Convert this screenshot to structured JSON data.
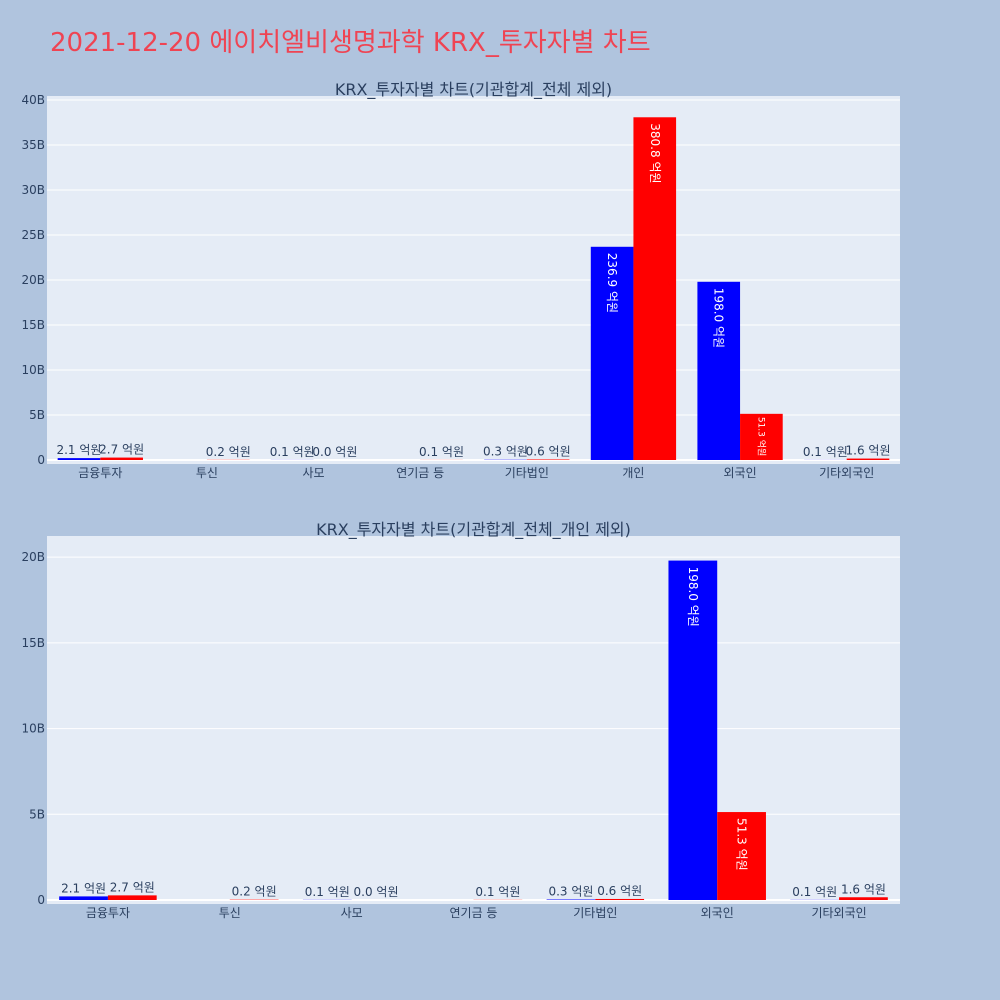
{
  "page_title": "2021-12-20 에이치엘비생명과학 KRX_투자자별 차트",
  "colors": {
    "buy": "#0000ff",
    "sell": "#ff0000",
    "plot_bg": "#e5ecf6",
    "page_bg": "#b0c4de",
    "title": "#ef4453"
  },
  "chart_data": [
    {
      "type": "bar",
      "title": "KRX_투자자별 차트(기관합계_전체 제외)",
      "categories": [
        "금융투자",
        "투신",
        "사모",
        "연기금 등",
        "기타법인",
        "개인",
        "외국인",
        "기타외국인"
      ],
      "series": [
        {
          "values": [
            210000000,
            0,
            10000000,
            0,
            30000000,
            23690000000,
            19800000000,
            10000000
          ],
          "labels": [
            "2.1 억원",
            "",
            "0.1 억원",
            "",
            "0.3 억원",
            "236.9 억원",
            "198.0 억원",
            "0.1 억원"
          ]
        },
        {
          "values": [
            270000000,
            20000000,
            0,
            10000000,
            60000000,
            38080000000,
            5130000000,
            160000000
          ],
          "labels": [
            "2.7 억원",
            "0.2 억원",
            "0.0 억원",
            "0.1 억원",
            "0.6 억원",
            "380.8 억원",
            "51.3 억원",
            "1.6 억원"
          ]
        }
      ],
      "ylim": [
        0,
        40000000000
      ],
      "yticks": [
        0,
        5000000000,
        10000000000,
        15000000000,
        20000000000,
        25000000000,
        30000000000,
        35000000000,
        40000000000
      ],
      "ytick_labels": [
        "0",
        "5B",
        "10B",
        "15B",
        "20B",
        "25B",
        "30B",
        "35B",
        "40B"
      ]
    },
    {
      "type": "bar",
      "title": "KRX_투자자별 차트(기관합계_전체_개인 제외)",
      "categories": [
        "금융투자",
        "투신",
        "사모",
        "연기금 등",
        "기타법인",
        "외국인",
        "기타외국인"
      ],
      "series": [
        {
          "values": [
            210000000,
            0,
            10000000,
            0,
            30000000,
            19800000000,
            10000000
          ],
          "labels": [
            "2.1 억원",
            "",
            "0.1 억원",
            "",
            "0.3 억원",
            "198.0 억원",
            "0.1 억원"
          ]
        },
        {
          "values": [
            270000000,
            20000000,
            0,
            10000000,
            60000000,
            5130000000,
            160000000
          ],
          "labels": [
            "2.7 억원",
            "0.2 억원",
            "0.0 억원",
            "0.1 억원",
            "0.6 억원",
            "51.3 억원",
            "1.6 억원"
          ]
        }
      ],
      "ylim": [
        0,
        21000000000
      ],
      "yticks": [
        0,
        5000000000,
        10000000000,
        15000000000,
        20000000000
      ],
      "ytick_labels": [
        "0",
        "5B",
        "10B",
        "15B",
        "20B"
      ]
    }
  ]
}
